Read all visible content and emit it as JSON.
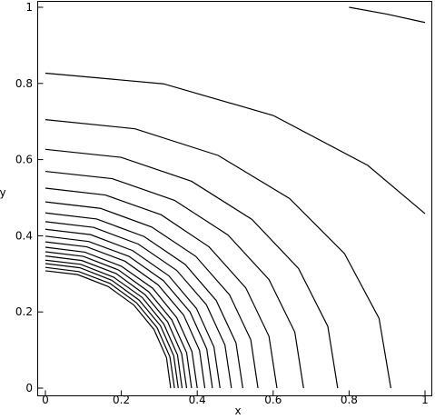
{
  "chart_data": {
    "type": "contour",
    "xlabel": "x",
    "ylabel": "y",
    "color": "#000000",
    "xlim": [
      0,
      1
    ],
    "ylim": [
      0,
      1
    ],
    "xticks": [
      0,
      0.2,
      0.4,
      0.6,
      0.8,
      1
    ],
    "yticks": [
      0,
      0.2,
      0.4,
      0.6,
      0.8,
      1
    ],
    "series": [
      {
        "x": [
          0.8,
          0.9,
          1.0
        ],
        "y": [
          1.0,
          0.982,
          0.96
        ]
      },
      {
        "x": [
          0,
          0.311,
          0.6,
          0.849,
          1.0
        ],
        "y": [
          0.827,
          0.799,
          0.716,
          0.585,
          0.458
        ]
      },
      {
        "x": [
          0,
          0.236,
          0.455,
          0.643,
          0.788,
          0.879,
          0.91
        ],
        "y": [
          0.705,
          0.681,
          0.611,
          0.498,
          0.353,
          0.183,
          0
        ]
      },
      {
        "x": [
          0,
          0.199,
          0.385,
          0.544,
          0.667,
          0.744,
          0.77
        ],
        "y": [
          0.627,
          0.606,
          0.543,
          0.443,
          0.314,
          0.162,
          0
        ]
      },
      {
        "x": [
          0,
          0.176,
          0.34,
          0.481,
          0.589,
          0.657,
          0.68
        ],
        "y": [
          0.569,
          0.55,
          0.493,
          0.402,
          0.285,
          0.147,
          0
        ]
      },
      {
        "x": [
          0,
          0.158,
          0.305,
          0.431,
          0.528,
          0.589,
          0.61
        ],
        "y": [
          0.525,
          0.507,
          0.455,
          0.371,
          0.263,
          0.136,
          0
        ]
      },
      {
        "x": [
          0,
          0.145,
          0.28,
          0.396,
          0.485,
          0.541,
          0.56
        ],
        "y": [
          0.489,
          0.472,
          0.423,
          0.346,
          0.245,
          0.127,
          0
        ]
      },
      {
        "x": [
          0,
          0.135,
          0.26,
          0.368,
          0.45,
          0.502,
          0.52
        ],
        "y": [
          0.46,
          0.444,
          0.398,
          0.325,
          0.23,
          0.119,
          0
        ]
      },
      {
        "x": [
          0,
          0.127,
          0.245,
          0.346,
          0.424,
          0.473,
          0.49
        ],
        "y": [
          0.437,
          0.422,
          0.378,
          0.309,
          0.219,
          0.113,
          0
        ]
      },
      {
        "x": [
          0,
          0.119,
          0.23,
          0.325,
          0.398,
          0.444,
          0.46
        ],
        "y": [
          0.417,
          0.403,
          0.361,
          0.295,
          0.209,
          0.108,
          0
        ]
      },
      {
        "x": [
          0,
          0.114,
          0.22,
          0.311,
          0.381,
          0.425,
          0.44
        ],
        "y": [
          0.399,
          0.385,
          0.346,
          0.282,
          0.2,
          0.103,
          0
        ]
      },
      {
        "x": [
          0,
          0.109,
          0.21,
          0.297,
          0.364,
          0.406,
          0.42
        ],
        "y": [
          0.384,
          0.371,
          0.333,
          0.271,
          0.192,
          0.099,
          0
        ]
      },
      {
        "x": [
          0,
          0.104,
          0.2,
          0.283,
          0.346,
          0.386,
          0.4
        ],
        "y": [
          0.37,
          0.357,
          0.32,
          0.262,
          0.185,
          0.096,
          0
        ]
      },
      {
        "x": [
          0,
          0.1,
          0.193,
          0.272,
          0.333,
          0.372,
          0.385
        ],
        "y": [
          0.358,
          0.346,
          0.31,
          0.253,
          0.179,
          0.093,
          0
        ]
      },
      {
        "x": [
          0,
          0.096,
          0.186,
          0.263,
          0.322,
          0.359,
          0.372
        ],
        "y": [
          0.347,
          0.335,
          0.301,
          0.245,
          0.174,
          0.09,
          0
        ]
      },
      {
        "x": [
          0,
          0.093,
          0.18,
          0.255,
          0.312,
          0.348,
          0.36
        ],
        "y": [
          0.336,
          0.325,
          0.291,
          0.238,
          0.168,
          0.087,
          0
        ]
      },
      {
        "x": [
          0,
          0.091,
          0.175,
          0.247,
          0.303,
          0.338,
          0.35
        ],
        "y": [
          0.327,
          0.316,
          0.283,
          0.231,
          0.164,
          0.085,
          0
        ]
      },
      {
        "x": [
          0,
          0.088,
          0.17,
          0.24,
          0.294,
          0.328,
          0.34
        ],
        "y": [
          0.317,
          0.306,
          0.275,
          0.224,
          0.159,
          0.082,
          0
        ]
      },
      {
        "x": [
          0,
          0.085,
          0.165,
          0.233,
          0.286,
          0.319,
          0.33
        ],
        "y": [
          0.308,
          0.298,
          0.267,
          0.218,
          0.154,
          0.08,
          0
        ]
      }
    ]
  }
}
